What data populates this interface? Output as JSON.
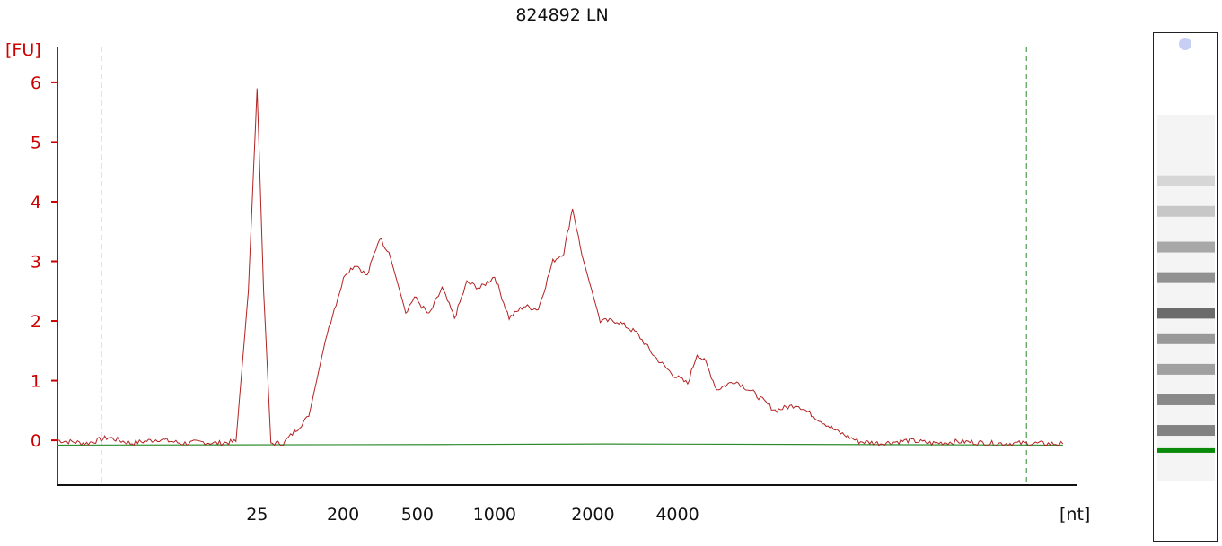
{
  "chart_data": {
    "type": "line",
    "title": "824892 LN",
    "ylabel": "[FU]",
    "xlabel": "[nt]",
    "ylim": [
      -0.75,
      6.6
    ],
    "yticks": [
      0,
      1,
      2,
      3,
      4,
      5,
      6
    ],
    "xticks": [
      "25",
      "200",
      "500",
      "1000",
      "2000",
      "4000"
    ],
    "grid": false,
    "colors": {
      "trace": "#b22222",
      "baseline": "#2e8b2e",
      "axis_y": "#cc0000",
      "marker_lines": "#2e8b2e",
      "gel_marker": "#0a8a0a"
    },
    "series": [
      {
        "points": [
          [
            0,
            0
          ],
          [
            0.04,
            -0.05
          ],
          [
            0.07,
            0.05
          ],
          [
            0.1,
            -0.05
          ],
          [
            0.14,
            0.02
          ],
          [
            0.17,
            -0.05
          ],
          [
            0.2,
            -0.03
          ],
          [
            0.22,
            -0.05
          ],
          [
            0.245,
            -0.02
          ],
          [
            0.262,
            2.5
          ],
          [
            0.274,
            5.9
          ],
          [
            0.283,
            2.5
          ],
          [
            0.293,
            -0.05
          ],
          [
            0.31,
            -0.05
          ],
          [
            0.345,
            0.4
          ],
          [
            0.37,
            1.8
          ],
          [
            0.395,
            2.8
          ],
          [
            0.41,
            2.95
          ],
          [
            0.425,
            2.75
          ],
          [
            0.442,
            3.4
          ],
          [
            0.455,
            3.15
          ],
          [
            0.478,
            2.15
          ],
          [
            0.49,
            2.4
          ],
          [
            0.51,
            2.1
          ],
          [
            0.528,
            2.55
          ],
          [
            0.545,
            2.05
          ],
          [
            0.562,
            2.65
          ],
          [
            0.58,
            2.55
          ],
          [
            0.6,
            2.75
          ],
          [
            0.62,
            2.05
          ],
          [
            0.64,
            2.25
          ],
          [
            0.66,
            2.2
          ],
          [
            0.68,
            3.0
          ],
          [
            0.695,
            3.15
          ],
          [
            0.707,
            3.9
          ],
          [
            0.72,
            3.1
          ],
          [
            0.745,
            2.0
          ],
          [
            0.768,
            2.0
          ],
          [
            0.795,
            1.8
          ],
          [
            0.82,
            1.4
          ],
          [
            0.845,
            1.1
          ],
          [
            0.865,
            0.95
          ],
          [
            0.878,
            1.45
          ],
          [
            0.89,
            1.3
          ],
          [
            0.905,
            0.85
          ],
          [
            0.93,
            1.0
          ],
          [
            0.955,
            0.8
          ],
          [
            0.985,
            0.5
          ],
          [
            1.015,
            0.6
          ],
          [
            1.045,
            0.35
          ],
          [
            1.07,
            0.15
          ],
          [
            1.1,
            -0.02
          ],
          [
            1.13,
            -0.05
          ],
          [
            1.17,
            0.0
          ],
          [
            1.2,
            -0.05
          ],
          [
            1.24,
            -0.02
          ],
          [
            1.28,
            -0.05
          ],
          [
            1.33,
            -0.05
          ],
          [
            1.38,
            -0.06
          ]
        ]
      },
      {
        "points": [
          [
            0,
            -0.08
          ],
          [
            0.53,
            -0.07
          ],
          [
            0.75,
            -0.06
          ],
          [
            1.38,
            -0.08
          ]
        ]
      }
    ],
    "markers": [
      0.06,
      1.33
    ],
    "gel_bands": [
      {
        "pos": 0.29,
        "darkness": 0.15
      },
      {
        "pos": 0.35,
        "darkness": 0.25
      },
      {
        "pos": 0.42,
        "darkness": 0.45
      },
      {
        "pos": 0.48,
        "darkness": 0.6
      },
      {
        "pos": 0.55,
        "darkness": 0.85
      },
      {
        "pos": 0.6,
        "darkness": 0.55
      },
      {
        "pos": 0.66,
        "darkness": 0.5
      },
      {
        "pos": 0.72,
        "darkness": 0.65
      },
      {
        "pos": 0.78,
        "darkness": 0.7
      }
    ],
    "gel_marker_pos": 0.815
  }
}
